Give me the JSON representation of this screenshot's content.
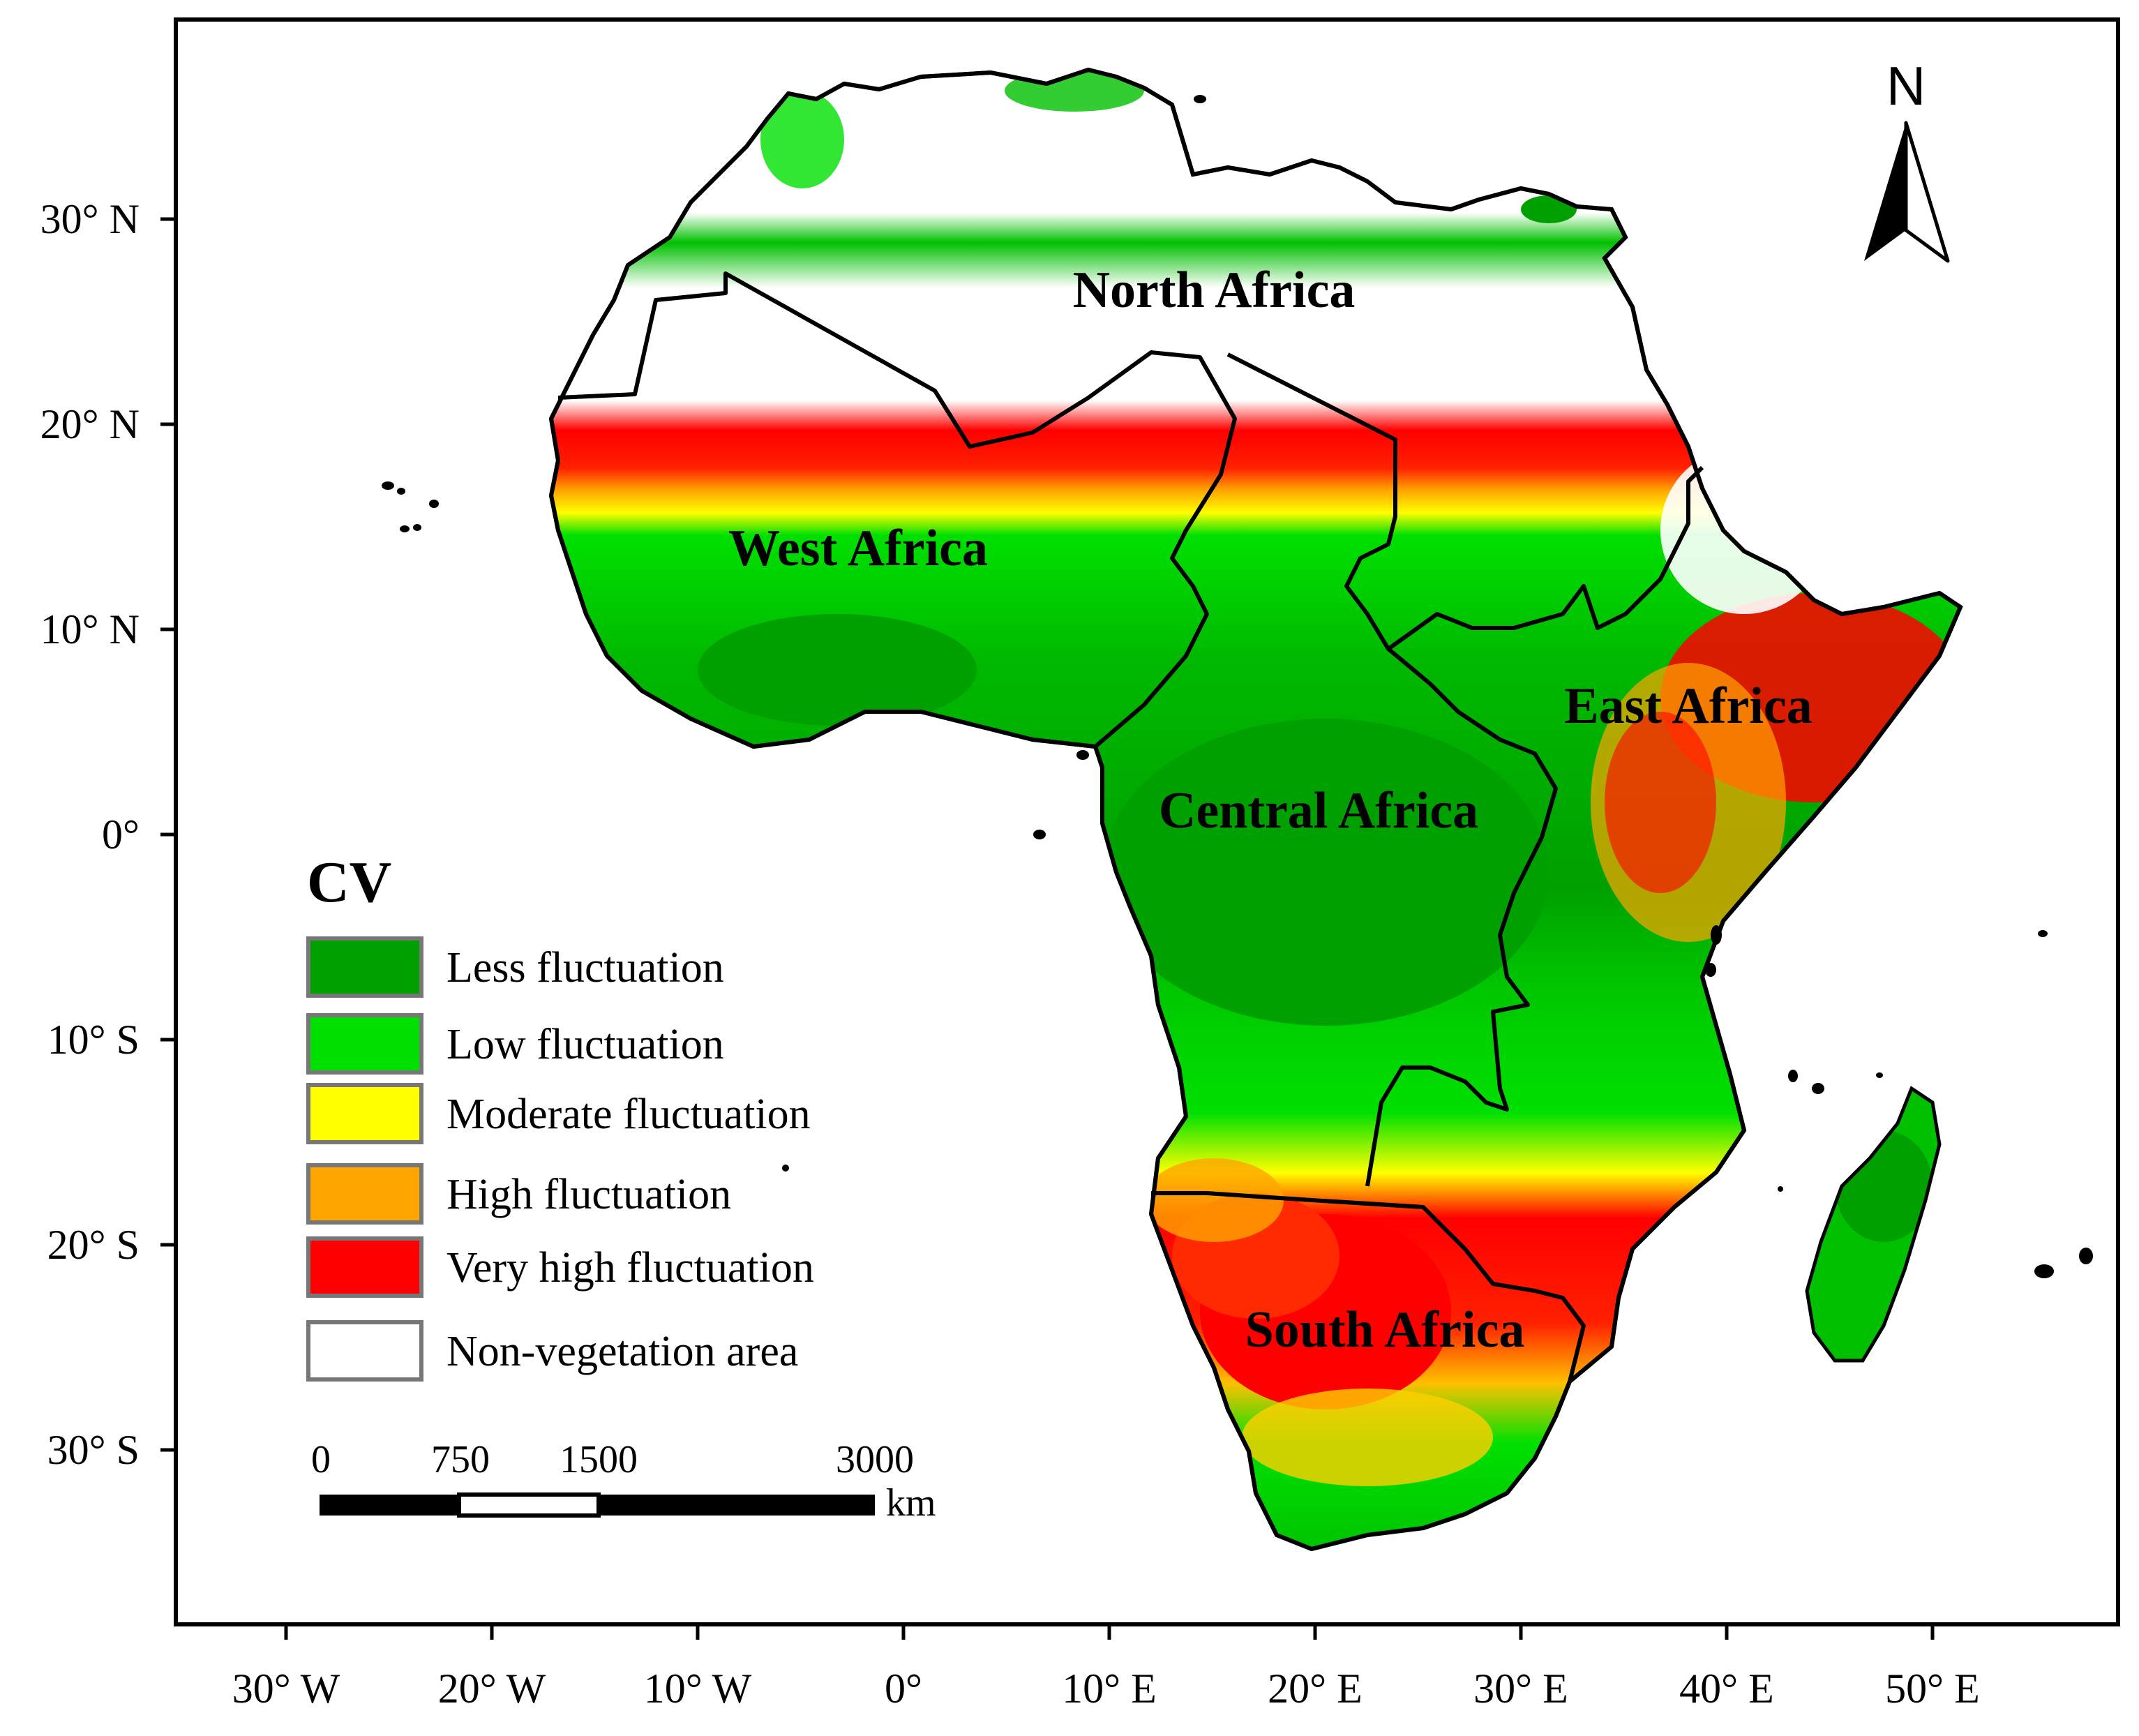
{
  "map": {
    "x_ticks": [
      "30° W",
      "20° W",
      "10° W",
      "0°",
      "10° E",
      "20° E",
      "30° E",
      "40° E",
      "50° E"
    ],
    "y_ticks": [
      "30° N",
      "20° N",
      "10° N",
      "0°",
      "10° S",
      "20° S",
      "30° S"
    ],
    "regions": [
      "North Africa",
      "West Africa",
      "Central Africa",
      "East Africa",
      "South Africa"
    ],
    "north_label": "N",
    "north_arrow_icon": "north-arrow-icon"
  },
  "legend": {
    "title": "CV",
    "items": [
      {
        "label": "Less fluctuation",
        "color": "#00a000"
      },
      {
        "label": "Low fluctuation",
        "color": "#00e000"
      },
      {
        "label": "Moderate fluctuation",
        "color": "#ffff00"
      },
      {
        "label": "High fluctuation",
        "color": "#ffa500"
      },
      {
        "label": "Very high fluctuation",
        "color": "#ff0000"
      },
      {
        "label": "Non-vegetation area",
        "color": "#ffffff"
      }
    ]
  },
  "scale_bar": {
    "labels": [
      "0",
      "750",
      "1500",
      "3000"
    ],
    "unit": "km"
  }
}
